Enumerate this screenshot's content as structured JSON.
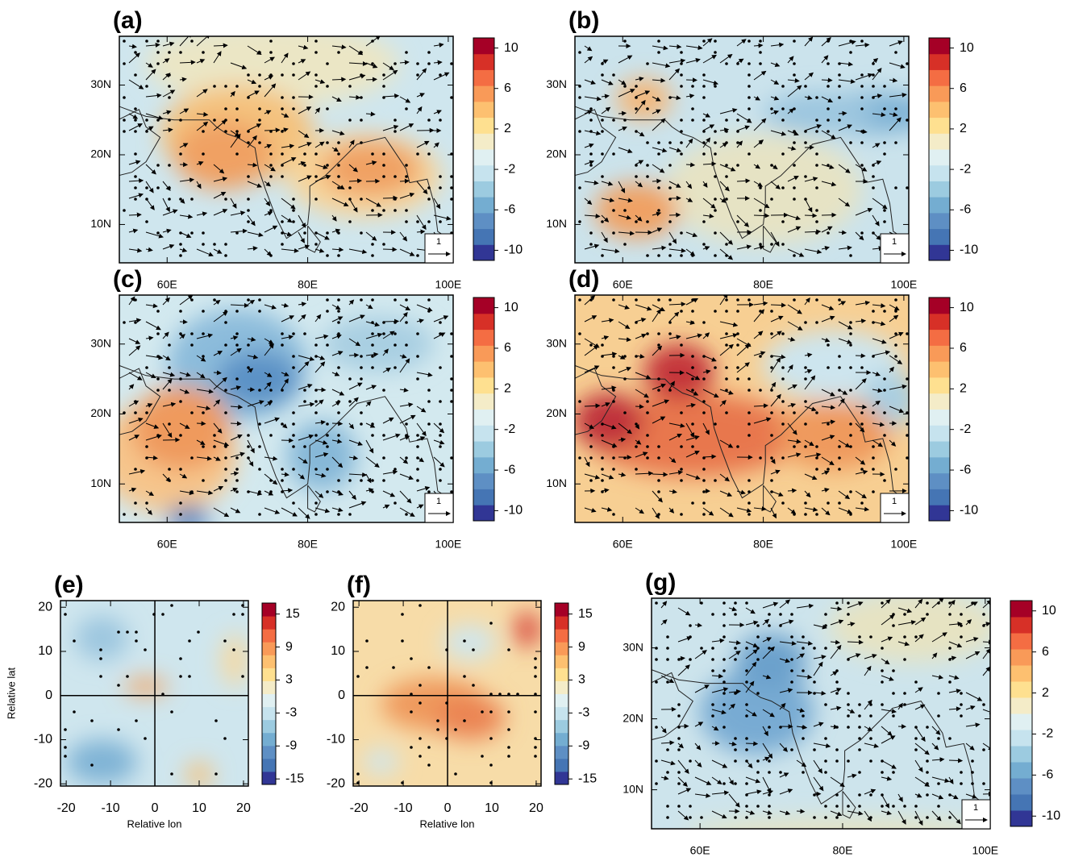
{
  "chart_data": [
    {
      "type": "contour",
      "label": "(a)",
      "xlim": [
        53.2,
        100.7
      ],
      "ylim": [
        4.5,
        37
      ],
      "xticks": [
        {
          "value": 60,
          "label": "60E"
        },
        {
          "value": 80,
          "label": "80E"
        },
        {
          "value": 100,
          "label": "100E"
        }
      ],
      "yticks": [
        {
          "value": 10,
          "label": "10N"
        },
        {
          "value": 20,
          "label": "20N"
        },
        {
          "value": 30,
          "label": "30N"
        }
      ],
      "clim": [
        -11,
        11
      ],
      "cticks": [
        10,
        6,
        2,
        -2,
        -6,
        -10
      ],
      "colormap": [
        "#313695",
        "#4575b4",
        "#5e8fc4",
        "#74add1",
        "#9ccbe0",
        "#c6e3ee",
        "#e0f0f2",
        "#f4ecc8",
        "#fee090",
        "#fdc070",
        "#f99a58",
        "#f46d43",
        "#d73027",
        "#a50026"
      ],
      "ref_vector": 1
    },
    {
      "type": "contour",
      "label": "(b)",
      "xlim": [
        53.2,
        100.7
      ],
      "ylim": [
        4.5,
        37
      ],
      "xticks": [
        {
          "value": 60,
          "label": "60E"
        },
        {
          "value": 80,
          "label": "80E"
        },
        {
          "value": 100,
          "label": "100E"
        }
      ],
      "yticks": [
        {
          "value": 10,
          "label": "10N"
        },
        {
          "value": 20,
          "label": "20N"
        },
        {
          "value": 30,
          "label": "30N"
        }
      ],
      "clim": [
        -11,
        11
      ],
      "cticks": [
        10,
        6,
        2,
        -2,
        -6,
        -10
      ],
      "colormap": [
        "#313695",
        "#4575b4",
        "#5e8fc4",
        "#74add1",
        "#9ccbe0",
        "#c6e3ee",
        "#e0f0f2",
        "#f4ecc8",
        "#fee090",
        "#fdc070",
        "#f99a58",
        "#f46d43",
        "#d73027",
        "#a50026"
      ],
      "ref_vector": 1
    },
    {
      "type": "contour",
      "label": "(c)",
      "xlim": [
        53.2,
        100.7
      ],
      "ylim": [
        4.5,
        37
      ],
      "xticks": [
        {
          "value": 60,
          "label": "60E"
        },
        {
          "value": 80,
          "label": "80E"
        },
        {
          "value": 100,
          "label": "100E"
        }
      ],
      "yticks": [
        {
          "value": 10,
          "label": "10N"
        },
        {
          "value": 20,
          "label": "20N"
        },
        {
          "value": 30,
          "label": "30N"
        }
      ],
      "clim": [
        -11,
        11
      ],
      "cticks": [
        10,
        6,
        2,
        -2,
        -6,
        -10
      ],
      "colormap": [
        "#313695",
        "#4575b4",
        "#5e8fc4",
        "#74add1",
        "#9ccbe0",
        "#c6e3ee",
        "#e0f0f2",
        "#f4ecc8",
        "#fee090",
        "#fdc070",
        "#f99a58",
        "#f46d43",
        "#d73027",
        "#a50026"
      ],
      "ref_vector": 1
    },
    {
      "type": "contour",
      "label": "(d)",
      "xlim": [
        53.2,
        100.7
      ],
      "ylim": [
        4.5,
        37
      ],
      "xticks": [
        {
          "value": 60,
          "label": "60E"
        },
        {
          "value": 80,
          "label": "80E"
        },
        {
          "value": 100,
          "label": "100E"
        }
      ],
      "yticks": [
        {
          "value": 10,
          "label": "10N"
        },
        {
          "value": 20,
          "label": "20N"
        },
        {
          "value": 30,
          "label": "30N"
        }
      ],
      "clim": [
        -11,
        11
      ],
      "cticks": [
        10,
        6,
        2,
        -2,
        -6,
        -10
      ],
      "colormap": [
        "#313695",
        "#4575b4",
        "#5e8fc4",
        "#74add1",
        "#9ccbe0",
        "#c6e3ee",
        "#e0f0f2",
        "#f4ecc8",
        "#fee090",
        "#fdc070",
        "#f99a58",
        "#f46d43",
        "#d73027",
        "#a50026"
      ],
      "ref_vector": 1
    },
    {
      "type": "contour",
      "label": "(e)",
      "xlim": [
        -21.3,
        21.1
      ],
      "ylim": [
        -20.5,
        21.5
      ],
      "xticks": [
        -20,
        -10,
        0,
        10,
        20
      ],
      "yticks": [
        -20,
        -10,
        0,
        10,
        20
      ],
      "xlabel": "Relative lon",
      "ylabel": "Relative lat",
      "crosshair": true,
      "clim": [
        -16,
        17
      ],
      "cticks": [
        15,
        9,
        3,
        -3,
        -9,
        -15
      ],
      "colormap": [
        "#313695",
        "#4575b4",
        "#5e8fc4",
        "#74add1",
        "#9ccbe0",
        "#c6e3ee",
        "#e0f0f2",
        "#f4ecc8",
        "#fee090",
        "#fdc070",
        "#f99a58",
        "#f46d43",
        "#d73027",
        "#a50026"
      ]
    },
    {
      "type": "contour",
      "label": "(f)",
      "xlim": [
        -21.3,
        21.1
      ],
      "ylim": [
        -20.5,
        21.5
      ],
      "xticks": [
        -20,
        -10,
        0,
        10,
        20
      ],
      "yticks": [
        -20,
        -10,
        0,
        10,
        20
      ],
      "xlabel": "Relative lon",
      "crosshair": true,
      "clim": [
        -16,
        17
      ],
      "cticks": [
        15,
        9,
        3,
        -3,
        -9,
        -15
      ],
      "colormap": [
        "#313695",
        "#4575b4",
        "#5e8fc4",
        "#74add1",
        "#9ccbe0",
        "#c6e3ee",
        "#e0f0f2",
        "#f4ecc8",
        "#fee090",
        "#fdc070",
        "#f99a58",
        "#f46d43",
        "#d73027",
        "#a50026"
      ]
    },
    {
      "type": "contour",
      "label": "(g)",
      "xlim": [
        53.2,
        100.7
      ],
      "ylim": [
        4.5,
        37
      ],
      "xticks": [
        {
          "value": 60,
          "label": "60E"
        },
        {
          "value": 80,
          "label": "80E"
        },
        {
          "value": 100,
          "label": "100E"
        }
      ],
      "yticks": [
        {
          "value": 10,
          "label": "10N"
        },
        {
          "value": 20,
          "label": "20N"
        },
        {
          "value": 30,
          "label": "30N"
        }
      ],
      "clim": [
        -11,
        11
      ],
      "cticks": [
        10,
        6,
        2,
        -2,
        -6,
        -10
      ],
      "colormap": [
        "#313695",
        "#4575b4",
        "#5e8fc4",
        "#74add1",
        "#9ccbe0",
        "#c6e3ee",
        "#e0f0f2",
        "#f4ecc8",
        "#fee090",
        "#fdc070",
        "#f99a58",
        "#f46d43",
        "#d73027",
        "#a50026"
      ],
      "ref_vector": 1
    }
  ]
}
